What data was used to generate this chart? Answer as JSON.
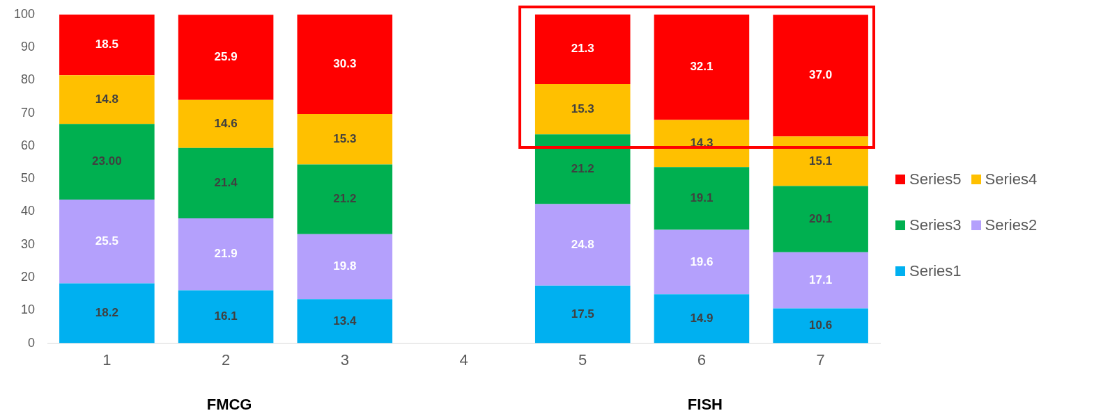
{
  "chart_data": {
    "type": "bar",
    "stacked": true,
    "categories": [
      "1",
      "2",
      "3",
      "4",
      "5",
      "6",
      "7"
    ],
    "ylim": [
      0,
      100
    ],
    "yticks": [
      0,
      10,
      20,
      30,
      40,
      50,
      60,
      70,
      80,
      90,
      100
    ],
    "grid": false,
    "legend": "right",
    "annotations": [
      "FMCG",
      "FISH"
    ],
    "series": [
      {
        "name": "Series1",
        "color": "#00b0f0",
        "values": [
          18.2,
          16.1,
          13.4,
          null,
          17.5,
          14.9,
          10.6
        ],
        "value_labels": [
          "18.2",
          "16.1",
          "13.4",
          null,
          "17.5",
          "14.9",
          "10.6"
        ]
      },
      {
        "name": "Series2",
        "color": "#b4a0fc",
        "values": [
          25.5,
          21.9,
          19.8,
          null,
          24.8,
          19.6,
          17.1
        ],
        "value_labels": [
          "25.5",
          "21.9",
          "19.8",
          null,
          "24.8",
          "19.6",
          "17.1"
        ]
      },
      {
        "name": "Series3",
        "color": "#00b050",
        "values": [
          23.0,
          21.4,
          21.2,
          null,
          21.2,
          19.1,
          20.1
        ],
        "value_labels": [
          "23.00",
          "21.4",
          "21.2",
          null,
          "21.2",
          "19.1",
          "20.1"
        ]
      },
      {
        "name": "Series4",
        "color": "#ffc000",
        "values": [
          14.8,
          14.6,
          15.3,
          null,
          15.3,
          14.3,
          15.1
        ],
        "value_labels": [
          "14.8",
          "14.6",
          "15.3",
          null,
          "15.3",
          "14.3",
          "15.1"
        ]
      },
      {
        "name": "Series5",
        "color": "#ff0000",
        "values": [
          18.5,
          25.9,
          30.3,
          null,
          21.3,
          32.1,
          37.0
        ],
        "value_labels": [
          "18.5",
          "25.9",
          "30.3",
          null,
          "21.3",
          "32.1",
          "37.0"
        ]
      }
    ]
  }
}
